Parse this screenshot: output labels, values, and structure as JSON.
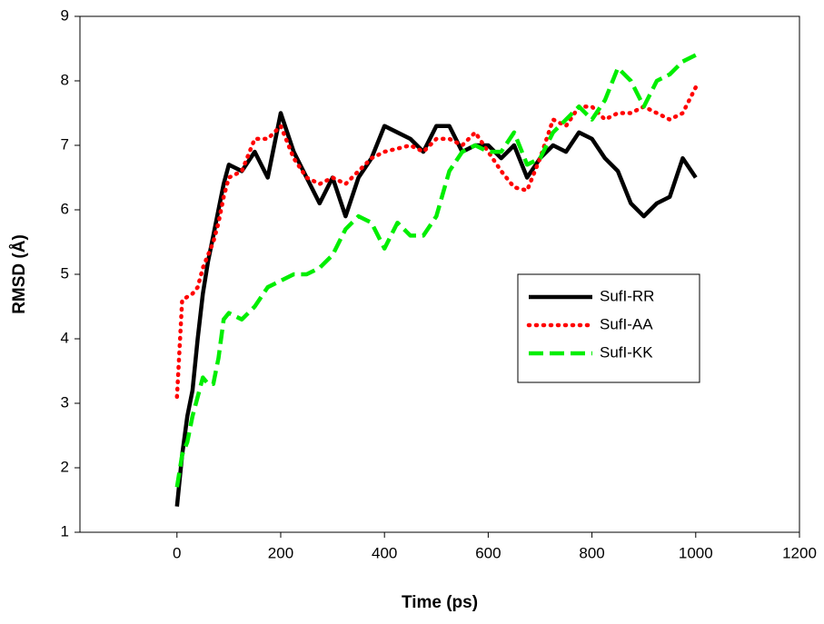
{
  "chart_data": {
    "type": "line",
    "xlabel": "Time (ps)",
    "ylabel": "RMSD (Å)",
    "x": [
      0,
      10,
      20,
      30,
      40,
      50,
      60,
      70,
      80,
      90,
      100,
      125,
      150,
      175,
      200,
      225,
      250,
      275,
      300,
      325,
      350,
      375,
      400,
      425,
      450,
      475,
      500,
      525,
      550,
      575,
      600,
      625,
      650,
      675,
      700,
      725,
      750,
      775,
      800,
      825,
      850,
      875,
      900,
      925,
      950,
      975,
      1000
    ],
    "series": [
      {
        "name": "SufI-RR",
        "color": "#000000",
        "style": "solid",
        "values": [
          1.4,
          2.2,
          2.8,
          3.2,
          4.0,
          4.7,
          5.2,
          5.6,
          6.0,
          6.4,
          6.7,
          6.6,
          6.9,
          6.5,
          7.5,
          6.9,
          6.5,
          6.1,
          6.5,
          5.9,
          6.5,
          6.8,
          7.3,
          7.2,
          7.1,
          6.9,
          7.3,
          7.3,
          6.9,
          7.0,
          7.0,
          6.8,
          7.0,
          6.5,
          6.8,
          7.0,
          6.9,
          7.2,
          7.1,
          6.8,
          6.6,
          6.1,
          5.9,
          6.1,
          6.2,
          6.8,
          6.5
        ]
      },
      {
        "name": "SufI-AA",
        "color": "#ff0000",
        "style": "dotted",
        "values": [
          3.1,
          4.6,
          4.65,
          4.7,
          4.8,
          5.1,
          5.3,
          5.5,
          5.8,
          6.2,
          6.5,
          6.6,
          7.1,
          7.1,
          7.3,
          6.8,
          6.5,
          6.4,
          6.5,
          6.4,
          6.6,
          6.8,
          6.9,
          6.95,
          7.0,
          6.9,
          7.1,
          7.1,
          7.0,
          7.2,
          6.9,
          6.6,
          6.35,
          6.3,
          6.8,
          7.4,
          7.3,
          7.6,
          7.6,
          7.4,
          7.5,
          7.5,
          7.6,
          7.5,
          7.4,
          7.5,
          7.9
        ]
      },
      {
        "name": "SufI-KK",
        "color": "#00ee00",
        "style": "dashed",
        "values": [
          1.7,
          2.2,
          2.4,
          2.8,
          3.1,
          3.4,
          3.3,
          3.3,
          3.7,
          4.3,
          4.4,
          4.3,
          4.5,
          4.8,
          4.9,
          5.0,
          5.0,
          5.1,
          5.3,
          5.7,
          5.9,
          5.8,
          5.4,
          5.8,
          5.6,
          5.6,
          5.9,
          6.6,
          6.9,
          7.0,
          6.9,
          6.9,
          7.2,
          6.7,
          6.8,
          7.2,
          7.4,
          7.6,
          7.4,
          7.7,
          8.2,
          8.0,
          7.6,
          8.0,
          8.1,
          8.3,
          8.4
        ]
      }
    ],
    "xlim": [
      -187,
      1200
    ],
    "xticks": [
      0,
      200,
      400,
      600,
      800,
      1000,
      1200
    ],
    "ylim": [
      1,
      9
    ],
    "yticks": [
      1,
      2,
      3,
      4,
      5,
      6,
      7,
      8,
      9
    ]
  }
}
